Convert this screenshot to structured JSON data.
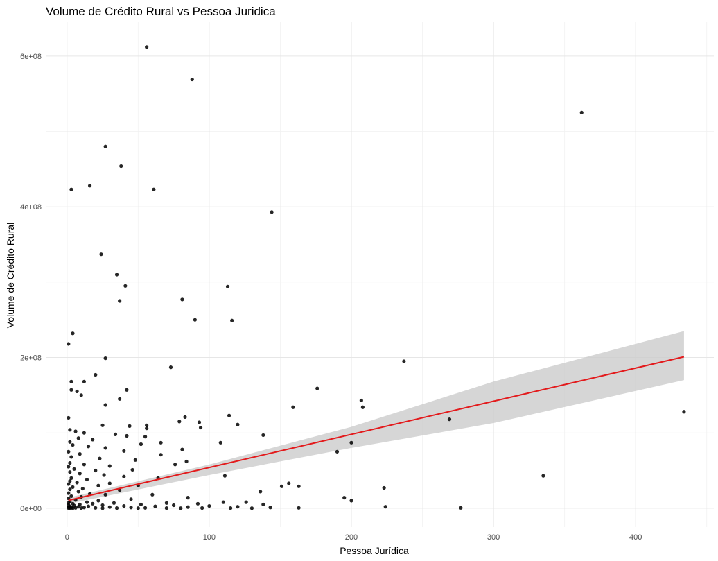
{
  "chart_data": {
    "type": "scatter",
    "title": "Volume de Crédito Rural vs Pessoa Juridica",
    "xlabel": "Pessoa Jurídica",
    "ylabel": "Volume de Crédito Rural",
    "xlim": [
      -15,
      455
    ],
    "ylim": [
      -25000000,
      645000000
    ],
    "x_ticks": [
      0,
      100,
      200,
      300,
      400
    ],
    "x_tick_labels": [
      "0",
      "100",
      "200",
      "300",
      "400"
    ],
    "y_ticks": [
      0,
      200000000,
      400000000,
      600000000
    ],
    "y_tick_labels": [
      "0e+00",
      "2e+08",
      "4e+08",
      "6e+08"
    ],
    "grid": true,
    "theme": "minimal",
    "point_color": "#000000",
    "regression": {
      "method": "linear",
      "color": "#e31a1c",
      "ci_color": "#cccccc",
      "x_range": [
        1,
        434
      ],
      "intercept": 10000000,
      "slope": 440000,
      "ci": [
        {
          "x": 1,
          "lower": 6000000,
          "upper": 14000000
        },
        {
          "x": 100,
          "lower": 44000000,
          "upper": 58000000
        },
        {
          "x": 200,
          "lower": 80000000,
          "upper": 108000000
        },
        {
          "x": 300,
          "lower": 113000000,
          "upper": 168000000
        },
        {
          "x": 434,
          "lower": 170000000,
          "upper": 235000000
        }
      ]
    },
    "points": [
      [
        56,
        612000000
      ],
      [
        88,
        569000000
      ],
      [
        362,
        525000000
      ],
      [
        27,
        480000000
      ],
      [
        38,
        454000000
      ],
      [
        3,
        423000000
      ],
      [
        16,
        428000000
      ],
      [
        61,
        423000000
      ],
      [
        144,
        393000000
      ],
      [
        24,
        337000000
      ],
      [
        35,
        310000000
      ],
      [
        41,
        295000000
      ],
      [
        113,
        294000000
      ],
      [
        37,
        275000000
      ],
      [
        81,
        277000000
      ],
      [
        90,
        250000000
      ],
      [
        116,
        249000000
      ],
      [
        4,
        232000000
      ],
      [
        1,
        218000000
      ],
      [
        27,
        199000000
      ],
      [
        73,
        187000000
      ],
      [
        237,
        195000000
      ],
      [
        20,
        177000000
      ],
      [
        3,
        168000000
      ],
      [
        12,
        168000000
      ],
      [
        42,
        157000000
      ],
      [
        176,
        159000000
      ],
      [
        3,
        157000000
      ],
      [
        7,
        155000000
      ],
      [
        10,
        150000000
      ],
      [
        37,
        145000000
      ],
      [
        27,
        137000000
      ],
      [
        207,
        143000000
      ],
      [
        208,
        134000000
      ],
      [
        159,
        134000000
      ],
      [
        434,
        128000000
      ],
      [
        83,
        121000000
      ],
      [
        114,
        123000000
      ],
      [
        269,
        118000000
      ],
      [
        1,
        120000000
      ],
      [
        79,
        115000000
      ],
      [
        93,
        114000000
      ],
      [
        120,
        111000000
      ],
      [
        25,
        110000000
      ],
      [
        56,
        110000000
      ],
      [
        44,
        109000000
      ],
      [
        94,
        107000000
      ],
      [
        56,
        106000000
      ],
      [
        2,
        104000000
      ],
      [
        6,
        102000000
      ],
      [
        12,
        100000000
      ],
      [
        34,
        98000000
      ],
      [
        138,
        97000000
      ],
      [
        42,
        96000000
      ],
      [
        55,
        95000000
      ],
      [
        8,
        93000000
      ],
      [
        18,
        91000000
      ],
      [
        2,
        88000000
      ],
      [
        66,
        87000000
      ],
      [
        108,
        87000000
      ],
      [
        200,
        87000000
      ],
      [
        52,
        85000000
      ],
      [
        4,
        84000000
      ],
      [
        15,
        82000000
      ],
      [
        27,
        80000000
      ],
      [
        81,
        78000000
      ],
      [
        40,
        76000000
      ],
      [
        1,
        75000000
      ],
      [
        190,
        75000000
      ],
      [
        9,
        72000000
      ],
      [
        66,
        71000000
      ],
      [
        3,
        68000000
      ],
      [
        23,
        66000000
      ],
      [
        48,
        64000000
      ],
      [
        84,
        62000000
      ],
      [
        2,
        60000000
      ],
      [
        12,
        58000000
      ],
      [
        76,
        58000000
      ],
      [
        30,
        56000000
      ],
      [
        1,
        55000000
      ],
      [
        5,
        52000000
      ],
      [
        46,
        51000000
      ],
      [
        20,
        50000000
      ],
      [
        2,
        48000000
      ],
      [
        9,
        46000000
      ],
      [
        26,
        44000000
      ],
      [
        111,
        43000000
      ],
      [
        335,
        43000000
      ],
      [
        40,
        42000000
      ],
      [
        3,
        40000000
      ],
      [
        64,
        40000000
      ],
      [
        14,
        38000000
      ],
      [
        2,
        36000000
      ],
      [
        7,
        34000000
      ],
      [
        30,
        33000000
      ],
      [
        156,
        33000000
      ],
      [
        1,
        32000000
      ],
      [
        22,
        30000000
      ],
      [
        50,
        30000000
      ],
      [
        151,
        29000000
      ],
      [
        163,
        29000000
      ],
      [
        4,
        28000000
      ],
      [
        11,
        26000000
      ],
      [
        223,
        27000000
      ],
      [
        2,
        25000000
      ],
      [
        37,
        24000000
      ],
      [
        8,
        22000000
      ],
      [
        136,
        22000000
      ],
      [
        1,
        20000000
      ],
      [
        16,
        19000000
      ],
      [
        27,
        18000000
      ],
      [
        60,
        18000000
      ],
      [
        3,
        16000000
      ],
      [
        10,
        15000000
      ],
      [
        85,
        14000000
      ],
      [
        195,
        14000000
      ],
      [
        1,
        13000000
      ],
      [
        45,
        12000000
      ],
      [
        6,
        11000000
      ],
      [
        22,
        10000000
      ],
      [
        200,
        10000000
      ],
      [
        2,
        9000000
      ],
      [
        14,
        8000000
      ],
      [
        110,
        8000000
      ],
      [
        126,
        8000000
      ],
      [
        1,
        7000000
      ],
      [
        33,
        7000000
      ],
      [
        70,
        7000000
      ],
      [
        4,
        6000000
      ],
      [
        18,
        6000000
      ],
      [
        92,
        6000000
      ],
      [
        9,
        5000000
      ],
      [
        52,
        5000000
      ],
      [
        138,
        5000000
      ],
      [
        1,
        4000000
      ],
      [
        25,
        4000000
      ],
      [
        75,
        4000000
      ],
      [
        5,
        3500000
      ],
      [
        40,
        3000000
      ],
      [
        100,
        3000000
      ],
      [
        2,
        2500000
      ],
      [
        15,
        2500000
      ],
      [
        62,
        2500000
      ],
      [
        120,
        2000000
      ],
      [
        224,
        2000000
      ],
      [
        8,
        2000000
      ],
      [
        1,
        1500000
      ],
      [
        30,
        1500000
      ],
      [
        85,
        1500000
      ],
      [
        3,
        1000000
      ],
      [
        12,
        1000000
      ],
      [
        45,
        1000000
      ],
      [
        143,
        1000000
      ],
      [
        163,
        500000
      ],
      [
        277,
        500000
      ],
      [
        6,
        500000
      ],
      [
        20,
        500000
      ],
      [
        55,
        500000
      ],
      [
        1,
        300000
      ],
      [
        95,
        300000
      ],
      [
        2,
        200000
      ],
      [
        10,
        200000
      ],
      [
        35,
        200000
      ],
      [
        70,
        200000
      ],
      [
        115,
        200000
      ],
      [
        4,
        100000
      ],
      [
        25,
        100000
      ],
      [
        50,
        100000
      ],
      [
        80,
        100000
      ],
      [
        130,
        100000
      ]
    ]
  }
}
